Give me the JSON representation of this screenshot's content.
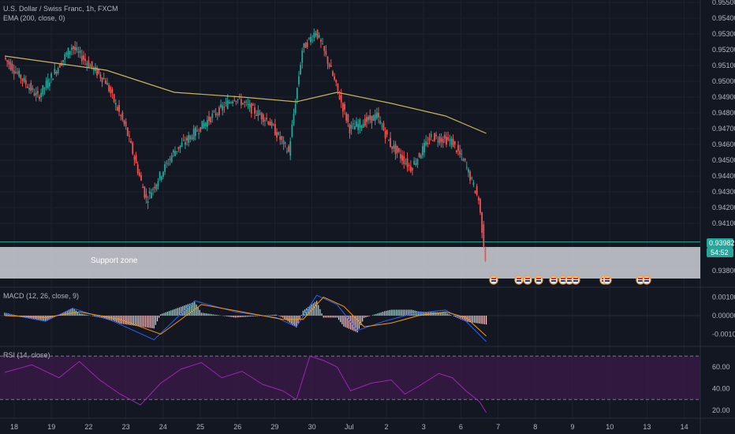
{
  "header": {
    "symbol_line": "U.S. Dollar / Swiss Franc, 1h, FXCM",
    "ema_line": "EMA (200, close, 0)"
  },
  "annotation": {
    "support_zone_label": "Support zone"
  },
  "price_badges": {
    "last_price": "0.93982",
    "countdown": "54:52"
  },
  "colors": {
    "background": "#131722",
    "grid": "#1e2230",
    "up": "#26a69a",
    "down": "#ef5350",
    "ema": "#c9b45a",
    "zone": "#dfe1e8",
    "macd": "#2962ff",
    "signal": "#ff9800",
    "rsi": "#9c27b0",
    "rsi_band": "#3b1a4a"
  },
  "chart_data": [
    {
      "type": "candlestick",
      "ylim": [
        0.937,
        0.955
      ],
      "y_ticks": [
        "0.95500",
        "0.95400",
        "0.95300",
        "0.95200",
        "0.95100",
        "0.95000",
        "0.94900",
        "0.94800",
        "0.94700",
        "0.94600",
        "0.94500",
        "0.94400",
        "0.94300",
        "0.94200",
        "0.94100",
        "0.93800"
      ],
      "x_ticks": [
        "18",
        "19",
        "22",
        "23",
        "24",
        "25",
        "26",
        "29",
        "30",
        "Jul",
        "2",
        "3",
        "6",
        "7",
        "8",
        "9",
        "10",
        "13",
        "14"
      ],
      "key_prices": [
        {
          "x": 0,
          "y": 0.9515
        },
        {
          "x": 5,
          "y": 0.949
        },
        {
          "x": 10,
          "y": 0.9522
        },
        {
          "x": 15,
          "y": 0.95
        },
        {
          "x": 18,
          "y": 0.947
        },
        {
          "x": 21,
          "y": 0.9425
        },
        {
          "x": 25,
          "y": 0.9455
        },
        {
          "x": 30,
          "y": 0.9475
        },
        {
          "x": 34,
          "y": 0.949
        },
        {
          "x": 39,
          "y": 0.9475
        },
        {
          "x": 42,
          "y": 0.9455
        },
        {
          "x": 44,
          "y": 0.952
        },
        {
          "x": 46,
          "y": 0.9532
        },
        {
          "x": 48,
          "y": 0.951
        },
        {
          "x": 51,
          "y": 0.947
        },
        {
          "x": 55,
          "y": 0.9478
        },
        {
          "x": 57,
          "y": 0.946
        },
        {
          "x": 60,
          "y": 0.9445
        },
        {
          "x": 63,
          "y": 0.9465
        },
        {
          "x": 66,
          "y": 0.9462
        },
        {
          "x": 68,
          "y": 0.9448
        },
        {
          "x": 70,
          "y": 0.9425
        },
        {
          "x": 71,
          "y": 0.9388
        }
      ],
      "ema": [
        {
          "x": 0,
          "y": 0.9516
        },
        {
          "x": 15,
          "y": 0.9507
        },
        {
          "x": 25,
          "y": 0.9493
        },
        {
          "x": 35,
          "y": 0.949
        },
        {
          "x": 43,
          "y": 0.9487
        },
        {
          "x": 49,
          "y": 0.9493
        },
        {
          "x": 57,
          "y": 0.9486
        },
        {
          "x": 65,
          "y": 0.9478
        },
        {
          "x": 71,
          "y": 0.9467
        }
      ],
      "support_zone": [
        0.9375,
        0.9395
      ],
      "current_price": 0.93982
    },
    {
      "type": "line",
      "title": "MACD (12, 26, close, 9)",
      "y_ticks": [
        "0.00100",
        "0.00000",
        "-0.00100"
      ],
      "ylim": [
        -0.0016,
        0.0013
      ],
      "macd": [
        {
          "x": 0,
          "y": 0.0001
        },
        {
          "x": 6,
          "y": -0.0003
        },
        {
          "x": 10,
          "y": 0.0004
        },
        {
          "x": 16,
          "y": -0.0003
        },
        {
          "x": 22,
          "y": -0.0013
        },
        {
          "x": 28,
          "y": 0.0008
        },
        {
          "x": 34,
          "y": 0.0002
        },
        {
          "x": 40,
          "y": -0.0001
        },
        {
          "x": 43,
          "y": -0.0006
        },
        {
          "x": 46,
          "y": 0.0011
        },
        {
          "x": 49,
          "y": 0.0006
        },
        {
          "x": 52,
          "y": -0.0008
        },
        {
          "x": 56,
          "y": -0.0003
        },
        {
          "x": 60,
          "y": 0.0001
        },
        {
          "x": 65,
          "y": 0.0003
        },
        {
          "x": 68,
          "y": -0.0003
        },
        {
          "x": 71,
          "y": -0.0014
        }
      ],
      "signal": [
        {
          "x": 0,
          "y": 0.0
        },
        {
          "x": 6,
          "y": -0.0001
        },
        {
          "x": 11,
          "y": 0.0002
        },
        {
          "x": 17,
          "y": -0.0002
        },
        {
          "x": 23,
          "y": -0.001
        },
        {
          "x": 29,
          "y": 0.0006
        },
        {
          "x": 35,
          "y": 0.0002
        },
        {
          "x": 41,
          "y": -0.0002
        },
        {
          "x": 44,
          "y": -0.0002
        },
        {
          "x": 47,
          "y": 0.001
        },
        {
          "x": 50,
          "y": 0.0005
        },
        {
          "x": 53,
          "y": -0.0006
        },
        {
          "x": 57,
          "y": -0.0004
        },
        {
          "x": 61,
          "y": 0.0
        },
        {
          "x": 65,
          "y": 0.0002
        },
        {
          "x": 68,
          "y": -0.0001
        },
        {
          "x": 71,
          "y": -0.0011
        }
      ]
    },
    {
      "type": "line",
      "title": "RSI (14, close)",
      "y_ticks": [
        "60.00",
        "40.00",
        "20.00"
      ],
      "ylim": [
        15,
        75
      ],
      "bands": [
        70,
        30
      ],
      "rsi": [
        {
          "x": 0,
          "y": 55
        },
        {
          "x": 4,
          "y": 62
        },
        {
          "x": 8,
          "y": 50
        },
        {
          "x": 11,
          "y": 65
        },
        {
          "x": 14,
          "y": 48
        },
        {
          "x": 17,
          "y": 35
        },
        {
          "x": 20,
          "y": 25
        },
        {
          "x": 23,
          "y": 45
        },
        {
          "x": 26,
          "y": 58
        },
        {
          "x": 29,
          "y": 64
        },
        {
          "x": 32,
          "y": 50
        },
        {
          "x": 35,
          "y": 56
        },
        {
          "x": 38,
          "y": 44
        },
        {
          "x": 41,
          "y": 38
        },
        {
          "x": 43,
          "y": 30
        },
        {
          "x": 45,
          "y": 70
        },
        {
          "x": 47,
          "y": 66
        },
        {
          "x": 49,
          "y": 60
        },
        {
          "x": 51,
          "y": 38
        },
        {
          "x": 54,
          "y": 45
        },
        {
          "x": 57,
          "y": 48
        },
        {
          "x": 59,
          "y": 35
        },
        {
          "x": 61,
          "y": 42
        },
        {
          "x": 64,
          "y": 54
        },
        {
          "x": 66,
          "y": 50
        },
        {
          "x": 68,
          "y": 38
        },
        {
          "x": 70,
          "y": 28
        },
        {
          "x": 71,
          "y": 18
        }
      ]
    }
  ]
}
